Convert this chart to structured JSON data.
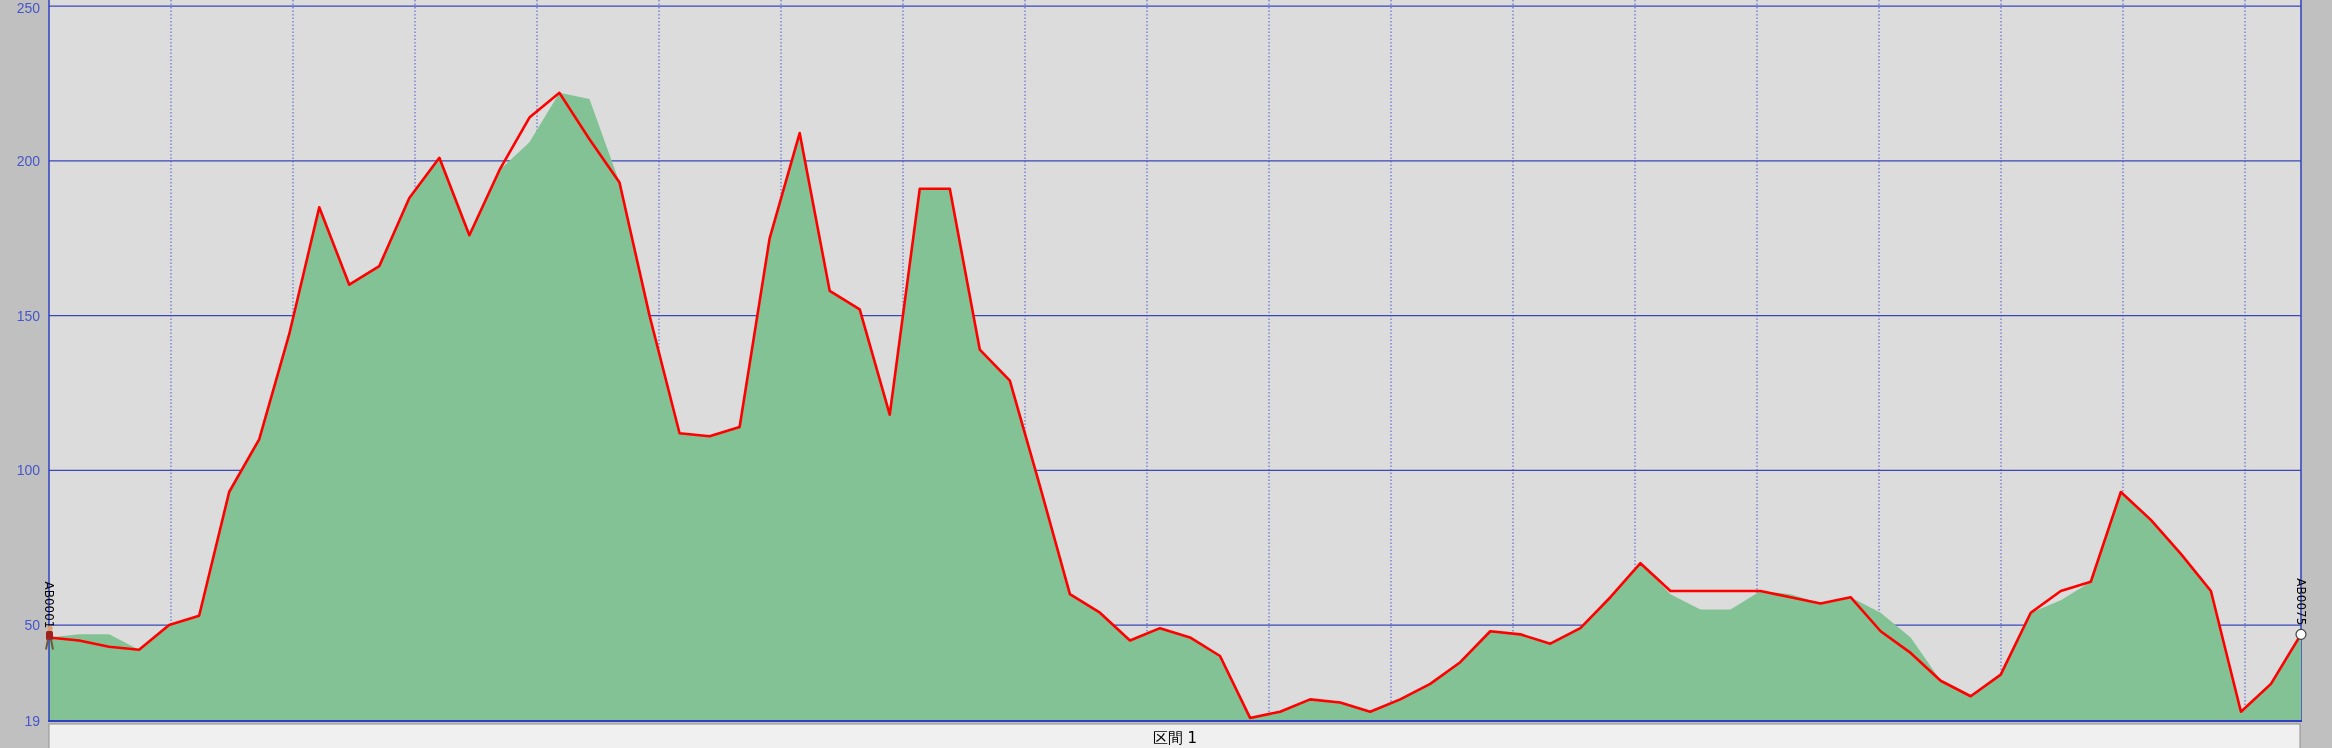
{
  "chart_data": {
    "type": "area",
    "xlabel": "区間 1",
    "categories": [
      "AB0001",
      null,
      null,
      null,
      null,
      null,
      null,
      null,
      null,
      null,
      null,
      null,
      null,
      null,
      null,
      null,
      null,
      null,
      null,
      null,
      null,
      null,
      null,
      null,
      null,
      null,
      null,
      null,
      null,
      null,
      null,
      null,
      null,
      null,
      null,
      null,
      null,
      null,
      null,
      null,
      null,
      null,
      null,
      null,
      null,
      null,
      null,
      null,
      null,
      null,
      null,
      null,
      null,
      null,
      null,
      null,
      null,
      null,
      null,
      null,
      null,
      null,
      null,
      null,
      null,
      null,
      null,
      null,
      null,
      null,
      null,
      null,
      null,
      null,
      null,
      "AB0075"
    ],
    "ylim": [
      19,
      252
    ],
    "yticks": [
      19,
      50,
      100,
      150,
      200,
      250
    ],
    "grid": true,
    "series": [
      {
        "color": "#83c294",
        "values": [
          46,
          47,
          47,
          42,
          50,
          53,
          93,
          110,
          144,
          185,
          160,
          166,
          188,
          201,
          176,
          197,
          206,
          222,
          220,
          193,
          150,
          112,
          111,
          114,
          175,
          209,
          158,
          152,
          118,
          191,
          191,
          139,
          129,
          95,
          60,
          54,
          45,
          49,
          46,
          40,
          20,
          22,
          26,
          25,
          22,
          26,
          31,
          38,
          48,
          47,
          44,
          49,
          59,
          70,
          60,
          55,
          55,
          61,
          60,
          57,
          59,
          54,
          46,
          32,
          27,
          34,
          54,
          58,
          64,
          93,
          84,
          73,
          61,
          22,
          31,
          47
        ]
      },
      {
        "type": "line",
        "color": "#ff0000",
        "values": [
          46,
          45,
          43,
          42,
          50,
          53,
          93,
          110,
          144,
          185,
          160,
          166,
          188,
          201,
          176,
          197,
          214,
          222,
          207,
          193,
          150,
          112,
          111,
          114,
          175,
          209,
          158,
          152,
          118,
          191,
          191,
          139,
          129,
          95,
          60,
          54,
          45,
          49,
          46,
          40,
          20,
          22,
          26,
          25,
          22,
          26,
          31,
          38,
          48,
          47,
          44,
          49,
          59,
          70,
          61,
          61,
          61,
          61,
          59,
          57,
          59,
          48,
          41,
          32,
          27,
          34,
          54,
          61,
          64,
          93,
          84,
          73,
          61,
          22,
          31,
          47
        ]
      },
      {
        "type": "scatter",
        "color": "#ffffff",
        "marker": "circle",
        "x": [
          "AB0075"
        ],
        "values": [
          47
        ]
      }
    ]
  }
}
